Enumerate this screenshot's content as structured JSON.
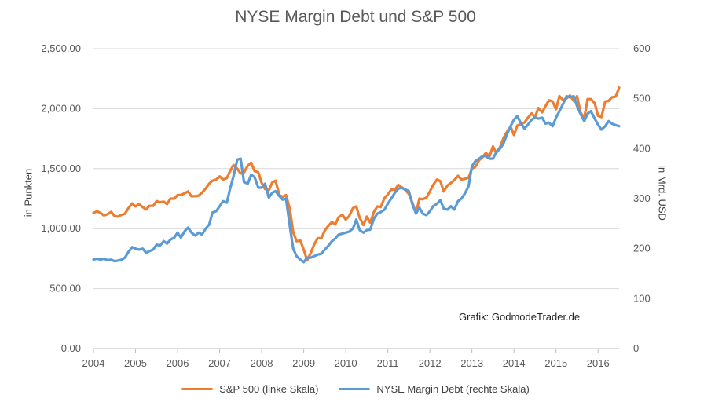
{
  "chart_data": {
    "type": "line",
    "title": "NYSE Margin Debt und S&P 500",
    "ylabel_left": "in Punkten",
    "ylabel_right": "in Mrd. USD",
    "xlabel": "",
    "credit": "Grafik: GodmodeTrader.de",
    "x_ticks": [
      "2004",
      "2005",
      "2006",
      "2007",
      "2008",
      "2009",
      "2010",
      "2011",
      "2012",
      "2013",
      "2014",
      "2015",
      "2016"
    ],
    "y_left_ticks": [
      "0.00",
      "500.00",
      "1,000.00",
      "1,500.00",
      "2,000.00",
      "2,500.00"
    ],
    "y_right_ticks": [
      "0",
      "100",
      "200",
      "300",
      "400",
      "500",
      "600"
    ],
    "ylim_left": [
      0,
      2500
    ],
    "ylim_right": [
      0,
      600
    ],
    "xlim": [
      2004.0,
      2016.5
    ],
    "grid": "horizontal",
    "legend_position": "bottom",
    "series": [
      {
        "name": "S&P 500 (linke Skala)",
        "axis": "left",
        "color": "#ED7D31",
        "points": [
          [
            2004.0,
            1130
          ],
          [
            2004.08,
            1145
          ],
          [
            2004.17,
            1130
          ],
          [
            2004.25,
            1110
          ],
          [
            2004.33,
            1120
          ],
          [
            2004.42,
            1140
          ],
          [
            2004.5,
            1105
          ],
          [
            2004.58,
            1100
          ],
          [
            2004.67,
            1115
          ],
          [
            2004.75,
            1125
          ],
          [
            2004.83,
            1170
          ],
          [
            2004.92,
            1210
          ],
          [
            2005.0,
            1185
          ],
          [
            2005.08,
            1205
          ],
          [
            2005.17,
            1180
          ],
          [
            2005.25,
            1160
          ],
          [
            2005.33,
            1190
          ],
          [
            2005.42,
            1190
          ],
          [
            2005.5,
            1230
          ],
          [
            2005.58,
            1220
          ],
          [
            2005.67,
            1225
          ],
          [
            2005.75,
            1205
          ],
          [
            2005.83,
            1250
          ],
          [
            2005.92,
            1250
          ],
          [
            2006.0,
            1280
          ],
          [
            2006.08,
            1280
          ],
          [
            2006.17,
            1295
          ],
          [
            2006.25,
            1310
          ],
          [
            2006.33,
            1270
          ],
          [
            2006.42,
            1270
          ],
          [
            2006.5,
            1275
          ],
          [
            2006.58,
            1300
          ],
          [
            2006.67,
            1335
          ],
          [
            2006.75,
            1375
          ],
          [
            2006.83,
            1400
          ],
          [
            2006.92,
            1410
          ],
          [
            2007.0,
            1435
          ],
          [
            2007.08,
            1410
          ],
          [
            2007.17,
            1420
          ],
          [
            2007.25,
            1480
          ],
          [
            2007.33,
            1530
          ],
          [
            2007.42,
            1500
          ],
          [
            2007.5,
            1460
          ],
          [
            2007.58,
            1470
          ],
          [
            2007.67,
            1525
          ],
          [
            2007.75,
            1550
          ],
          [
            2007.83,
            1480
          ],
          [
            2007.92,
            1470
          ],
          [
            2008.0,
            1380
          ],
          [
            2008.08,
            1330
          ],
          [
            2008.17,
            1320
          ],
          [
            2008.25,
            1385
          ],
          [
            2008.33,
            1400
          ],
          [
            2008.42,
            1280
          ],
          [
            2008.5,
            1265
          ],
          [
            2008.58,
            1280
          ],
          [
            2008.67,
            1165
          ],
          [
            2008.75,
            970
          ],
          [
            2008.83,
            895
          ],
          [
            2008.92,
            900
          ],
          [
            2009.0,
            825
          ],
          [
            2009.08,
            735
          ],
          [
            2009.17,
            800
          ],
          [
            2009.25,
            870
          ],
          [
            2009.33,
            920
          ],
          [
            2009.42,
            920
          ],
          [
            2009.5,
            985
          ],
          [
            2009.58,
            1020
          ],
          [
            2009.67,
            1055
          ],
          [
            2009.75,
            1035
          ],
          [
            2009.83,
            1095
          ],
          [
            2009.92,
            1115
          ],
          [
            2010.0,
            1075
          ],
          [
            2010.08,
            1105
          ],
          [
            2010.17,
            1170
          ],
          [
            2010.25,
            1185
          ],
          [
            2010.33,
            1090
          ],
          [
            2010.42,
            1030
          ],
          [
            2010.5,
            1100
          ],
          [
            2010.58,
            1050
          ],
          [
            2010.67,
            1140
          ],
          [
            2010.75,
            1185
          ],
          [
            2010.83,
            1180
          ],
          [
            2010.92,
            1255
          ],
          [
            2011.0,
            1285
          ],
          [
            2011.08,
            1325
          ],
          [
            2011.17,
            1325
          ],
          [
            2011.25,
            1365
          ],
          [
            2011.33,
            1345
          ],
          [
            2011.42,
            1320
          ],
          [
            2011.5,
            1290
          ],
          [
            2011.58,
            1220
          ],
          [
            2011.67,
            1130
          ],
          [
            2011.75,
            1250
          ],
          [
            2011.83,
            1245
          ],
          [
            2011.92,
            1260
          ],
          [
            2012.0,
            1310
          ],
          [
            2012.08,
            1365
          ],
          [
            2012.17,
            1410
          ],
          [
            2012.25,
            1395
          ],
          [
            2012.33,
            1310
          ],
          [
            2012.42,
            1360
          ],
          [
            2012.5,
            1380
          ],
          [
            2012.58,
            1405
          ],
          [
            2012.67,
            1440
          ],
          [
            2012.75,
            1410
          ],
          [
            2012.83,
            1415
          ],
          [
            2012.92,
            1425
          ],
          [
            2013.0,
            1500
          ],
          [
            2013.08,
            1515
          ],
          [
            2013.17,
            1570
          ],
          [
            2013.25,
            1595
          ],
          [
            2013.33,
            1630
          ],
          [
            2013.42,
            1605
          ],
          [
            2013.5,
            1685
          ],
          [
            2013.58,
            1630
          ],
          [
            2013.67,
            1680
          ],
          [
            2013.75,
            1755
          ],
          [
            2013.83,
            1805
          ],
          [
            2013.92,
            1850
          ],
          [
            2014.0,
            1780
          ],
          [
            2014.08,
            1860
          ],
          [
            2014.17,
            1870
          ],
          [
            2014.25,
            1885
          ],
          [
            2014.33,
            1925
          ],
          [
            2014.42,
            1960
          ],
          [
            2014.5,
            1930
          ],
          [
            2014.58,
            2005
          ],
          [
            2014.67,
            1970
          ],
          [
            2014.75,
            2020
          ],
          [
            2014.83,
            2070
          ],
          [
            2014.92,
            2060
          ],
          [
            2015.0,
            1995
          ],
          [
            2015.08,
            2105
          ],
          [
            2015.17,
            2070
          ],
          [
            2015.25,
            2085
          ],
          [
            2015.33,
            2110
          ],
          [
            2015.42,
            2065
          ],
          [
            2015.5,
            2105
          ],
          [
            2015.58,
            1970
          ],
          [
            2015.67,
            1920
          ],
          [
            2015.75,
            2080
          ],
          [
            2015.83,
            2080
          ],
          [
            2015.92,
            2045
          ],
          [
            2016.0,
            1940
          ],
          [
            2016.08,
            1930
          ],
          [
            2016.17,
            2060
          ],
          [
            2016.25,
            2065
          ],
          [
            2016.33,
            2095
          ],
          [
            2016.42,
            2100
          ],
          [
            2016.5,
            2175
          ]
        ]
      },
      {
        "name": "NYSE Margin Debt (rechte Skala)",
        "axis": "right",
        "color": "#5B9BD5",
        "points": [
          [
            2004.0,
            178
          ],
          [
            2004.08,
            180
          ],
          [
            2004.17,
            178
          ],
          [
            2004.25,
            180
          ],
          [
            2004.33,
            177
          ],
          [
            2004.42,
            178
          ],
          [
            2004.5,
            175
          ],
          [
            2004.58,
            176
          ],
          [
            2004.67,
            178
          ],
          [
            2004.75,
            182
          ],
          [
            2004.83,
            193
          ],
          [
            2004.92,
            203
          ],
          [
            2005.0,
            200
          ],
          [
            2005.08,
            198
          ],
          [
            2005.17,
            200
          ],
          [
            2005.25,
            192
          ],
          [
            2005.33,
            195
          ],
          [
            2005.42,
            198
          ],
          [
            2005.5,
            208
          ],
          [
            2005.58,
            206
          ],
          [
            2005.67,
            215
          ],
          [
            2005.75,
            210
          ],
          [
            2005.83,
            218
          ],
          [
            2005.92,
            222
          ],
          [
            2006.0,
            232
          ],
          [
            2006.08,
            222
          ],
          [
            2006.17,
            235
          ],
          [
            2006.25,
            242
          ],
          [
            2006.33,
            232
          ],
          [
            2006.42,
            226
          ],
          [
            2006.5,
            232
          ],
          [
            2006.58,
            228
          ],
          [
            2006.67,
            240
          ],
          [
            2006.75,
            248
          ],
          [
            2006.83,
            272
          ],
          [
            2006.92,
            275
          ],
          [
            2007.0,
            285
          ],
          [
            2007.08,
            295
          ],
          [
            2007.17,
            292
          ],
          [
            2007.25,
            320
          ],
          [
            2007.33,
            345
          ],
          [
            2007.42,
            378
          ],
          [
            2007.5,
            380
          ],
          [
            2007.58,
            333
          ],
          [
            2007.67,
            330
          ],
          [
            2007.75,
            348
          ],
          [
            2007.83,
            343
          ],
          [
            2007.92,
            322
          ],
          [
            2008.0,
            322
          ],
          [
            2008.08,
            330
          ],
          [
            2008.17,
            302
          ],
          [
            2008.25,
            312
          ],
          [
            2008.33,
            315
          ],
          [
            2008.42,
            305
          ],
          [
            2008.5,
            298
          ],
          [
            2008.58,
            300
          ],
          [
            2008.67,
            245
          ],
          [
            2008.75,
            200
          ],
          [
            2008.83,
            185
          ],
          [
            2008.92,
            178
          ],
          [
            2009.0,
            173
          ],
          [
            2009.08,
            182
          ],
          [
            2009.17,
            182
          ],
          [
            2009.25,
            185
          ],
          [
            2009.33,
            188
          ],
          [
            2009.42,
            190
          ],
          [
            2009.5,
            198
          ],
          [
            2009.58,
            205
          ],
          [
            2009.67,
            215
          ],
          [
            2009.75,
            220
          ],
          [
            2009.83,
            228
          ],
          [
            2009.92,
            230
          ],
          [
            2010.0,
            232
          ],
          [
            2010.08,
            234
          ],
          [
            2010.17,
            240
          ],
          [
            2010.25,
            258
          ],
          [
            2010.33,
            237
          ],
          [
            2010.42,
            232
          ],
          [
            2010.5,
            237
          ],
          [
            2010.58,
            238
          ],
          [
            2010.67,
            260
          ],
          [
            2010.75,
            270
          ],
          [
            2010.83,
            273
          ],
          [
            2010.92,
            278
          ],
          [
            2011.0,
            290
          ],
          [
            2011.08,
            300
          ],
          [
            2011.17,
            312
          ],
          [
            2011.25,
            320
          ],
          [
            2011.33,
            322
          ],
          [
            2011.42,
            318
          ],
          [
            2011.5,
            315
          ],
          [
            2011.58,
            290
          ],
          [
            2011.67,
            270
          ],
          [
            2011.75,
            282
          ],
          [
            2011.83,
            270
          ],
          [
            2011.92,
            267
          ],
          [
            2012.0,
            275
          ],
          [
            2012.08,
            285
          ],
          [
            2012.17,
            290
          ],
          [
            2012.25,
            297
          ],
          [
            2012.33,
            280
          ],
          [
            2012.42,
            278
          ],
          [
            2012.5,
            285
          ],
          [
            2012.58,
            278
          ],
          [
            2012.67,
            295
          ],
          [
            2012.75,
            300
          ],
          [
            2012.83,
            310
          ],
          [
            2012.92,
            325
          ],
          [
            2013.0,
            365
          ],
          [
            2013.08,
            375
          ],
          [
            2013.17,
            380
          ],
          [
            2013.25,
            385
          ],
          [
            2013.33,
            385
          ],
          [
            2013.42,
            380
          ],
          [
            2013.5,
            380
          ],
          [
            2013.58,
            393
          ],
          [
            2013.67,
            400
          ],
          [
            2013.75,
            410
          ],
          [
            2013.83,
            428
          ],
          [
            2013.92,
            445
          ],
          [
            2014.0,
            458
          ],
          [
            2014.08,
            465
          ],
          [
            2014.17,
            450
          ],
          [
            2014.25,
            440
          ],
          [
            2014.33,
            448
          ],
          [
            2014.42,
            458
          ],
          [
            2014.5,
            462
          ],
          [
            2014.58,
            460
          ],
          [
            2014.67,
            462
          ],
          [
            2014.75,
            450
          ],
          [
            2014.83,
            452
          ],
          [
            2014.92,
            445
          ],
          [
            2015.0,
            462
          ],
          [
            2015.08,
            475
          ],
          [
            2015.17,
            490
          ],
          [
            2015.25,
            505
          ],
          [
            2015.33,
            503
          ],
          [
            2015.42,
            505
          ],
          [
            2015.5,
            485
          ],
          [
            2015.58,
            470
          ],
          [
            2015.67,
            455
          ],
          [
            2015.75,
            470
          ],
          [
            2015.83,
            475
          ],
          [
            2015.92,
            460
          ],
          [
            2016.0,
            448
          ],
          [
            2016.08,
            438
          ],
          [
            2016.17,
            445
          ],
          [
            2016.25,
            455
          ],
          [
            2016.33,
            450
          ],
          [
            2016.42,
            447
          ],
          [
            2016.5,
            445
          ]
        ]
      }
    ]
  }
}
